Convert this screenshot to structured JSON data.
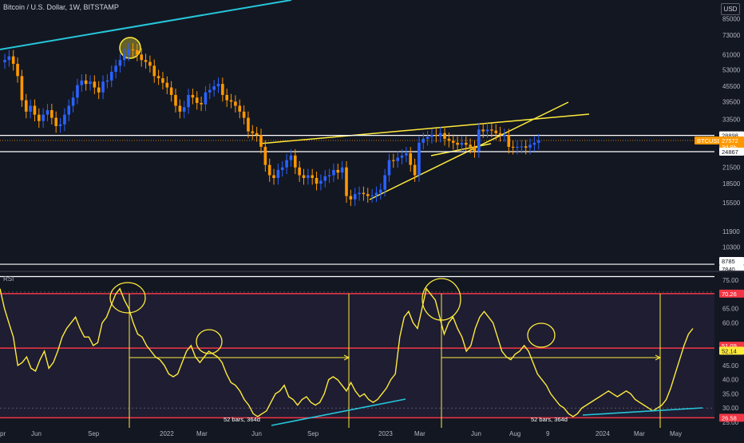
{
  "header": {
    "symbol_title": "Bitcoin / U.S. Dollar, 1W, BITSTAMP",
    "currency": "USD"
  },
  "colors": {
    "background": "#131722",
    "bull": "#2962ff",
    "bear": "#ff9800",
    "trend_yellow": "#ffeb3b",
    "trend_cyan": "#26c6da",
    "level_red": "#f23645",
    "level_white": "#ffffff",
    "rsi_line": "#ffeb3b"
  },
  "price_axis": {
    "ticks": [
      "85000",
      "73000",
      "61000",
      "53000",
      "45500",
      "39500",
      "33500",
      "28898",
      "27572",
      "24867",
      "21500",
      "18500",
      "15500",
      "11900",
      "10300",
      "8785",
      "7840"
    ],
    "highlight_levels": [
      {
        "label": "28898",
        "value": 28898,
        "style": "white"
      },
      {
        "label": "BTCUSD",
        "value": 27572,
        "style": "orange"
      },
      {
        "label": "27572",
        "value": 27572,
        "style": "orange"
      },
      {
        "label": "3d 9h",
        "value": 27572,
        "style": "orange"
      },
      {
        "label": "24867",
        "value": 24867,
        "style": "white"
      },
      {
        "label": "8785",
        "value": 8785,
        "style": "white"
      },
      {
        "label": "7840",
        "value": 7840,
        "style": "white"
      }
    ]
  },
  "time_axis": {
    "labels": [
      "pr",
      "Jun",
      "Sep",
      "2022",
      "Mar",
      "Jun",
      "Sep",
      "2023",
      "Mar",
      "Jun",
      "Aug",
      "9",
      "2024",
      "Mar",
      "May"
    ]
  },
  "rsi_panel": {
    "label": "RSI",
    "ticks": [
      "75.00",
      "70.26",
      "65.00",
      "60.00",
      "51.09",
      "52.14",
      "50.00",
      "45.00",
      "40.00",
      "35.00",
      "30.00",
      "26.58",
      "25.00"
    ],
    "levels": [
      {
        "label": "70.26",
        "value": 70.26,
        "style": "red"
      },
      {
        "label": "51.09",
        "value": 51.09,
        "style": "red"
      },
      {
        "label": "52.14",
        "value": 52.14,
        "style": "yellow"
      },
      {
        "label": "26.58",
        "value": 26.58,
        "style": "red"
      }
    ],
    "measure_labels": [
      "52 bars, 364d",
      "52 bars, 364d"
    ]
  },
  "chart_data": [
    {
      "type": "candlestick",
      "title": "Bitcoin / U.S. Dollar, 1W, BITSTAMP",
      "y_scale": "log",
      "ylim": [
        7840,
        85000
      ],
      "unit": "USD",
      "candles_close": [
        58000,
        60000,
        56000,
        50000,
        40000,
        36000,
        38000,
        35000,
        33000,
        35000,
        36500,
        34000,
        31500,
        32000,
        35000,
        38000,
        41000,
        46000,
        48000,
        46500,
        47500,
        45000,
        43000,
        47500,
        48000,
        52000,
        55000,
        58000,
        61000,
        64000,
        63500,
        61000,
        58000,
        57000,
        55000,
        50000,
        49000,
        47000,
        45000,
        42000,
        38000,
        36000,
        37500,
        42000,
        41000,
        39000,
        38500,
        43000,
        44000,
        45500,
        46500,
        42000,
        40000,
        39500,
        38000,
        36000,
        34000,
        30000,
        29500,
        29000,
        26000,
        22000,
        20000,
        19500,
        21000,
        21500,
        23000,
        24000,
        21500,
        20000,
        19500,
        20000,
        19500,
        18500,
        19000,
        19800,
        20000,
        21000,
        20500,
        21500,
        16500,
        16000,
        16800,
        17000,
        16800,
        16500,
        16600,
        17000,
        17500,
        20000,
        23000,
        22800,
        23500,
        24000,
        24500,
        22000,
        20000,
        27000,
        28000,
        28500,
        29000,
        28800,
        29500,
        28000,
        27500,
        27000,
        26500,
        27000,
        26500,
        26000,
        25000,
        30500,
        30000,
        30500,
        30200,
        29500,
        29000,
        29000,
        26000,
        25800,
        26000,
        26100,
        25800,
        26500,
        27000,
        27572
      ]
    },
    {
      "type": "line",
      "title": "RSI",
      "ylim": [
        25,
        75
      ],
      "series": [
        {
          "name": "RSI",
          "values": [
            72,
            65,
            60,
            55,
            45,
            46,
            48,
            44,
            43,
            47,
            50,
            44,
            46,
            50,
            55,
            58,
            60,
            62,
            58,
            55,
            55,
            52,
            53,
            60,
            62,
            66,
            70,
            72,
            68,
            65,
            60,
            56,
            55,
            52,
            50,
            48,
            47,
            45,
            42,
            41,
            42,
            46,
            50,
            52,
            48,
            46,
            48,
            50,
            49,
            48,
            46,
            42,
            39,
            38,
            36,
            33,
            31,
            28,
            27,
            28,
            29,
            32,
            35,
            36,
            38,
            34,
            33,
            31,
            33,
            34,
            32,
            31,
            32,
            35,
            40,
            41,
            40,
            38,
            36,
            39,
            36,
            34,
            35,
            33,
            32,
            33,
            35,
            37,
            40,
            42,
            55,
            62,
            64,
            60,
            58,
            65,
            72,
            70,
            68,
            62,
            56,
            60,
            62,
            58,
            55,
            50,
            52,
            58,
            62,
            64,
            62,
            60,
            55,
            50,
            48,
            47,
            49,
            50,
            52,
            50,
            46,
            42,
            40,
            38,
            35,
            33,
            31,
            30,
            28,
            27,
            28,
            30,
            31,
            32,
            33,
            34,
            35,
            36,
            35,
            34,
            35,
            36,
            35,
            33,
            32,
            31,
            30,
            29,
            30,
            31,
            33,
            37,
            42,
            47,
            52,
            56,
            58
          ]
        }
      ]
    }
  ]
}
